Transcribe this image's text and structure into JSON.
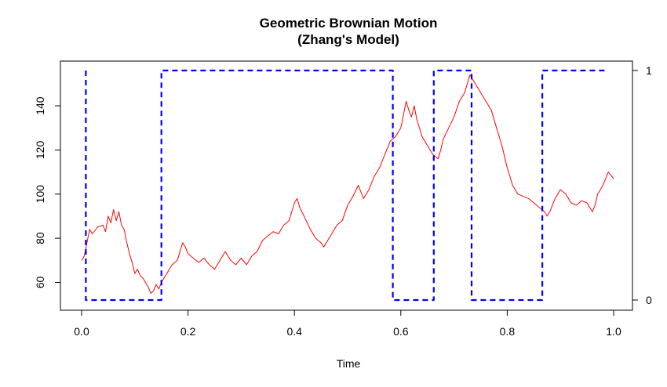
{
  "chart_data": {
    "type": "line",
    "title": "Geometric Brownian Motion",
    "subtitle": "(Zhang's Model)",
    "xlabel": "Time",
    "ylabel": "",
    "y2label": "",
    "xlim": [
      0.0,
      1.0
    ],
    "ylim": [
      52,
      156
    ],
    "y2lim": [
      0,
      1
    ],
    "grid": false,
    "legend": "none",
    "x_ticks": [
      "0.0",
      "0.2",
      "0.4",
      "0.6",
      "0.8",
      "1.0"
    ],
    "y_ticks": [
      "60",
      "80",
      "100",
      "120",
      "140"
    ],
    "y2_ticks": [
      "0",
      "1"
    ],
    "series": [
      {
        "axis": "left",
        "style": "solid",
        "color": "#ff0000",
        "points": [
          [
            0.0,
            70
          ],
          [
            0.005,
            72
          ],
          [
            0.01,
            78
          ],
          [
            0.015,
            84
          ],
          [
            0.02,
            82
          ],
          [
            0.03,
            85
          ],
          [
            0.04,
            86
          ],
          [
            0.045,
            83
          ],
          [
            0.05,
            90
          ],
          [
            0.055,
            87
          ],
          [
            0.06,
            93
          ],
          [
            0.065,
            88
          ],
          [
            0.07,
            92
          ],
          [
            0.075,
            86
          ],
          [
            0.08,
            84
          ],
          [
            0.085,
            78
          ],
          [
            0.09,
            73
          ],
          [
            0.095,
            69
          ],
          [
            0.1,
            64
          ],
          [
            0.105,
            66
          ],
          [
            0.11,
            63
          ],
          [
            0.115,
            62
          ],
          [
            0.12,
            60
          ],
          [
            0.125,
            58
          ],
          [
            0.13,
            55
          ],
          [
            0.135,
            56
          ],
          [
            0.14,
            59
          ],
          [
            0.145,
            57
          ],
          [
            0.15,
            60
          ],
          [
            0.16,
            64
          ],
          [
            0.17,
            68
          ],
          [
            0.18,
            70
          ],
          [
            0.185,
            74
          ],
          [
            0.19,
            78
          ],
          [
            0.195,
            76
          ],
          [
            0.2,
            73
          ],
          [
            0.21,
            71
          ],
          [
            0.22,
            69
          ],
          [
            0.23,
            71
          ],
          [
            0.24,
            68
          ],
          [
            0.25,
            66
          ],
          [
            0.26,
            70
          ],
          [
            0.27,
            74
          ],
          [
            0.28,
            70
          ],
          [
            0.29,
            68
          ],
          [
            0.3,
            71
          ],
          [
            0.31,
            68
          ],
          [
            0.32,
            72
          ],
          [
            0.33,
            74
          ],
          [
            0.34,
            79
          ],
          [
            0.35,
            81
          ],
          [
            0.36,
            83
          ],
          [
            0.37,
            82
          ],
          [
            0.38,
            86
          ],
          [
            0.39,
            88
          ],
          [
            0.4,
            96
          ],
          [
            0.405,
            98
          ],
          [
            0.41,
            94
          ],
          [
            0.42,
            89
          ],
          [
            0.43,
            84
          ],
          [
            0.44,
            80
          ],
          [
            0.45,
            78
          ],
          [
            0.455,
            76
          ],
          [
            0.46,
            78
          ],
          [
            0.47,
            82
          ],
          [
            0.48,
            86
          ],
          [
            0.49,
            88
          ],
          [
            0.5,
            95
          ],
          [
            0.51,
            99
          ],
          [
            0.52,
            104
          ],
          [
            0.53,
            98
          ],
          [
            0.54,
            102
          ],
          [
            0.55,
            108
          ],
          [
            0.56,
            112
          ],
          [
            0.57,
            118
          ],
          [
            0.58,
            124
          ],
          [
            0.59,
            126
          ],
          [
            0.6,
            130
          ],
          [
            0.605,
            136
          ],
          [
            0.61,
            142
          ],
          [
            0.615,
            138
          ],
          [
            0.62,
            135
          ],
          [
            0.625,
            140
          ],
          [
            0.63,
            134
          ],
          [
            0.64,
            126
          ],
          [
            0.65,
            122
          ],
          [
            0.66,
            118
          ],
          [
            0.67,
            116
          ],
          [
            0.675,
            120
          ],
          [
            0.68,
            125
          ],
          [
            0.69,
            130
          ],
          [
            0.7,
            135
          ],
          [
            0.71,
            142
          ],
          [
            0.72,
            146
          ],
          [
            0.73,
            154
          ],
          [
            0.735,
            152
          ],
          [
            0.74,
            150
          ],
          [
            0.75,
            146
          ],
          [
            0.76,
            142
          ],
          [
            0.77,
            138
          ],
          [
            0.78,
            130
          ],
          [
            0.79,
            122
          ],
          [
            0.8,
            112
          ],
          [
            0.81,
            104
          ],
          [
            0.82,
            100
          ],
          [
            0.83,
            99
          ],
          [
            0.84,
            98
          ],
          [
            0.85,
            96
          ],
          [
            0.86,
            94
          ],
          [
            0.87,
            92
          ],
          [
            0.875,
            90
          ],
          [
            0.88,
            92
          ],
          [
            0.89,
            98
          ],
          [
            0.9,
            102
          ],
          [
            0.91,
            100
          ],
          [
            0.92,
            96
          ],
          [
            0.93,
            95
          ],
          [
            0.94,
            97
          ],
          [
            0.95,
            96
          ],
          [
            0.96,
            92
          ],
          [
            0.965,
            95
          ],
          [
            0.97,
            100
          ],
          [
            0.98,
            104
          ],
          [
            0.99,
            110
          ],
          [
            1.0,
            107
          ]
        ]
      },
      {
        "axis": "right",
        "style": "dashed",
        "color": "#0000ff",
        "points": [
          [
            0.008,
            1
          ],
          [
            0.008,
            0
          ],
          [
            0.15,
            0
          ],
          [
            0.15,
            1
          ],
          [
            0.585,
            1
          ],
          [
            0.585,
            0
          ],
          [
            0.662,
            0
          ],
          [
            0.662,
            1
          ],
          [
            0.733,
            1
          ],
          [
            0.733,
            0
          ],
          [
            0.866,
            0
          ],
          [
            0.866,
            1
          ],
          [
            0.99,
            1
          ]
        ]
      }
    ]
  }
}
